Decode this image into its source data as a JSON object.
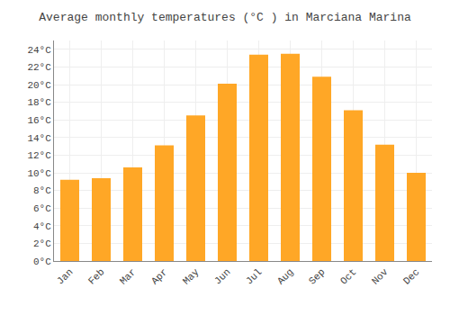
{
  "chart_data": {
    "type": "bar",
    "title": "Average monthly temperatures (°C ) in Marciana Marina",
    "categories": [
      "Jan",
      "Feb",
      "Mar",
      "Apr",
      "May",
      "Jun",
      "Jul",
      "Aug",
      "Sep",
      "Oct",
      "Nov",
      "Dec"
    ],
    "values": [
      9.2,
      9.4,
      10.6,
      13.1,
      16.5,
      20.1,
      23.4,
      23.5,
      20.9,
      17.1,
      13.2,
      10.0
    ],
    "color": "#FFA726",
    "ylim": [
      0,
      25
    ],
    "yticks": [
      {
        "value": 0,
        "label": "0°C"
      },
      {
        "value": 2,
        "label": "2°C"
      },
      {
        "value": 4,
        "label": "4°C"
      },
      {
        "value": 6,
        "label": "6°C"
      },
      {
        "value": 8,
        "label": "8°C"
      },
      {
        "value": 10,
        "label": "10°C"
      },
      {
        "value": 12,
        "label": "12°C"
      },
      {
        "value": 14,
        "label": "14°C"
      },
      {
        "value": 16,
        "label": "16°C"
      },
      {
        "value": 18,
        "label": "18°C"
      },
      {
        "value": 20,
        "label": "20°C"
      },
      {
        "value": 22,
        "label": "22°C"
      },
      {
        "value": 24,
        "label": "24°C"
      }
    ],
    "grid": true
  }
}
